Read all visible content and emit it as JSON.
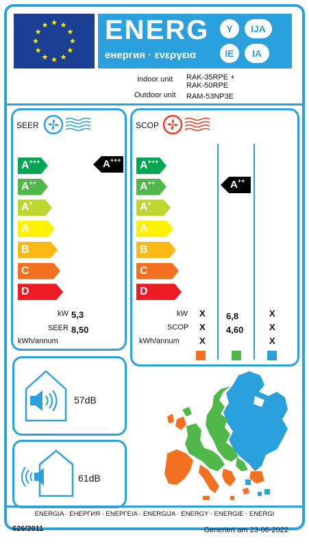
{
  "header": {
    "energy_word": "ENERG",
    "energy_sub": "енергия · ενεργεια",
    "lang_codes": [
      "Y",
      "IJA",
      "IE",
      "IA"
    ],
    "flag_icon": "eu-flag-icon"
  },
  "units": {
    "indoor_label": "Indoor unit",
    "indoor_model_1": "RAK-35RPE  +",
    "indoor_model_2": "RAK-50RPE",
    "outdoor_label": "Outdoor unit",
    "outdoor_model": "RAM-53NP3E"
  },
  "seer": {
    "title": "SEER",
    "classes": [
      {
        "letter": "A",
        "sup": "+++",
        "color": "#00a651"
      },
      {
        "letter": "A",
        "sup": "++",
        "color": "#50b848"
      },
      {
        "letter": "A",
        "sup": "+",
        "color": "#bed630"
      },
      {
        "letter": "A",
        "sup": "",
        "color": "#fff200"
      },
      {
        "letter": "B",
        "sup": "",
        "color": "#fdb913"
      },
      {
        "letter": "C",
        "sup": "",
        "color": "#f37021"
      },
      {
        "letter": "D",
        "sup": "",
        "color": "#ed1c24"
      }
    ],
    "rating_letter": "A",
    "rating_sup": "+++",
    "kw_label": "kW",
    "kw_value": "5,3",
    "seer_label": "SEER",
    "seer_value": "8,50",
    "kwh_label": "kWh/annum"
  },
  "scop": {
    "title": "SCOP",
    "classes": [
      {
        "letter": "A",
        "sup": "+++",
        "color": "#00a651"
      },
      {
        "letter": "A",
        "sup": "++",
        "color": "#50b848"
      },
      {
        "letter": "A",
        "sup": "+",
        "color": "#bed630"
      },
      {
        "letter": "A",
        "sup": "",
        "color": "#fff200"
      },
      {
        "letter": "B",
        "sup": "",
        "color": "#fdb913"
      },
      {
        "letter": "C",
        "sup": "",
        "color": "#f37021"
      },
      {
        "letter": "D",
        "sup": "",
        "color": "#ed1c24"
      }
    ],
    "rating_letter": "A",
    "rating_sup": "++",
    "kw_label": "kW",
    "scop_label": "SCOP",
    "kwh_label": "kWh/annum",
    "col1": {
      "kw": "X",
      "scop": "X",
      "kwh": "X",
      "color": "#f37021"
    },
    "col2": {
      "kw": "6,8",
      "scop": "4,60",
      "kwh": "",
      "color": "#50b848"
    },
    "col3": {
      "kw": "X",
      "scop": "X",
      "kwh": "X",
      "color": "#2aa1dc"
    }
  },
  "noise": {
    "indoor_db": "57dB",
    "outdoor_db": "61dB",
    "indoor_icon": "indoor-speaker-icon",
    "outdoor_icon": "outdoor-speaker-icon"
  },
  "footer": {
    "languages": "ENERGIA · ЕНЕРГИЯ · ΕΝΕΡΓΕΙΑ · ENERGIJA · ENERGY · ENERGIE · ENERGI",
    "regulation": "626/2011",
    "generated": "Generiert am 23-06-2022"
  }
}
